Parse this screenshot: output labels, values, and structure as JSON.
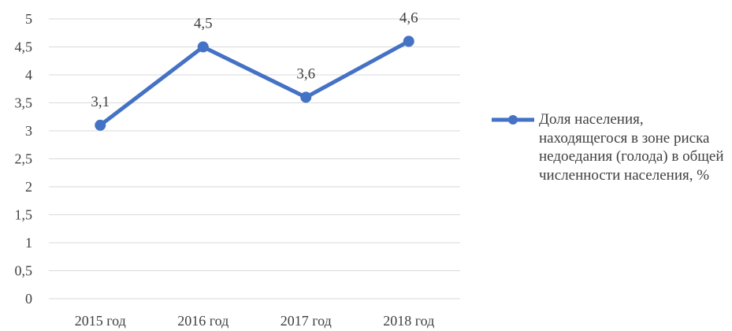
{
  "chart_data": {
    "type": "line",
    "categories": [
      "2015 год",
      "2016 год",
      "2017 год",
      "2018 год"
    ],
    "series": [
      {
        "name": "Доля населения, находящегося в зоне риска недоедания (голода) в общей численности населения, %",
        "values": [
          3.1,
          4.5,
          3.6,
          4.6
        ],
        "data_labels": [
          "3,1",
          "4,5",
          "3,6",
          "4,6"
        ],
        "color": "#4472C4"
      }
    ],
    "y_ticks": [
      "0",
      "0,5",
      "1",
      "1,5",
      "2",
      "2,5",
      "3",
      "3,5",
      "4",
      "4,5",
      "5"
    ],
    "ylim": [
      0,
      5
    ],
    "grid": true,
    "gridline_color": "#D9D9D9",
    "text_color": "#404040",
    "legend_position": "right"
  }
}
